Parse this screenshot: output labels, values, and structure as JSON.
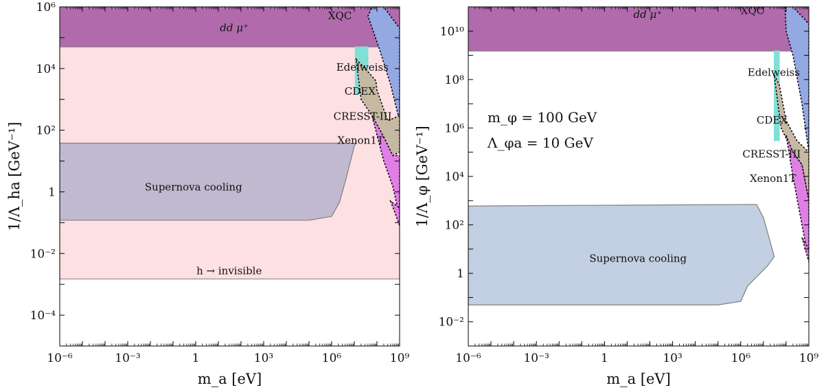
{
  "chart_data": [
    {
      "type": "area",
      "xlabel": "m_a [eV]",
      "ylabel": "1/Λ_ha [GeV⁻¹]",
      "xscale": "log",
      "yscale": "log",
      "xlim": [
        1e-06,
        1000000000.0
      ],
      "ylim": [
        1e-05,
        1000000.0
      ],
      "xticks": [
        {
          "value": 1e-06,
          "label": "10⁻⁶"
        },
        {
          "value": 0.001,
          "label": "10⁻³"
        },
        {
          "value": 1,
          "label": "1"
        },
        {
          "value": 1000.0,
          "label": "10³"
        },
        {
          "value": 1000000.0,
          "label": "10⁶"
        },
        {
          "value": 1000000000.0,
          "label": "10⁹"
        }
      ],
      "yticks": [
        {
          "value": 0.0001,
          "label": "10⁻⁴"
        },
        {
          "value": 0.01,
          "label": "10⁻²"
        },
        {
          "value": 1,
          "label": "1"
        },
        {
          "value": 100.0,
          "label": "10²"
        },
        {
          "value": 10000.0,
          "label": "10⁴"
        },
        {
          "value": 1000000.0,
          "label": "10⁶"
        }
      ],
      "regions": [
        {
          "name": "h → invisible",
          "color": "#fde0e2",
          "stroke": "#888888",
          "points": [
            [
              1e-06,
              0.0015
            ],
            [
              1000000000.0,
              0.0015
            ],
            [
              1000000000.0,
              50000.0
            ],
            [
              1e-06,
              50000.0
            ]
          ],
          "label_at": [
            30.0,
            0.0021
          ]
        },
        {
          "name": "Supernova cooling",
          "color": "#c1b9d0",
          "stroke": "#7f7f7f",
          "points": [
            [
              1e-06,
              0.12
            ],
            [
              100000.0,
              0.12
            ],
            [
              1000000.0,
              0.16
            ],
            [
              2200000.0,
              0.45
            ],
            [
              4500000.0,
              3
            ],
            [
              10000000.0,
              30
            ],
            [
              12000000.0,
              38
            ],
            [
              1e-06,
              38
            ]
          ],
          "label_at": [
            0.8,
            1.1
          ]
        },
        {
          "name": "dd μ⁺",
          "color": "#b16bac",
          "stroke": "#888888",
          "points": [
            [
              1e-06,
              50000.0
            ],
            [
              1000000000.0,
              50000.0
            ],
            [
              1000000000.0,
              1000000.0
            ],
            [
              1e-06,
              1000000.0
            ]
          ],
          "label_at": [
            50.0,
            160000.0
          ]
        },
        {
          "name": "Edelweiss",
          "color": "#80dfd6",
          "stroke": "#80dfd6",
          "points": [
            [
              11000000.0,
              50000.0
            ],
            [
              40000000.0,
              50000.0
            ],
            [
              40000000.0,
              1500.0
            ],
            [
              11000000.0,
              1500.0
            ]
          ],
          "label_at": [
            1600000.0,
            8500.0
          ]
        },
        {
          "name": "XQC",
          "color": "#94a8e2",
          "stroke": "#000000",
          "points": [
            [
              60000000.0,
              1000000.0
            ],
            [
              200000000.0,
              1000000.0
            ],
            [
              1000000000.0,
              200000.0
            ],
            [
              1000000000.0,
              200.0
            ],
            [
              400000000.0,
              3000.0
            ],
            [
              120000000.0,
              50000.0
            ],
            [
              40000000.0,
              500000.0
            ]
          ],
          "label_at": [
            700000.0,
            400000.0
          ]
        },
        {
          "name": "CDEX",
          "color": "#c6b9a3",
          "stroke": "#000000",
          "points": [
            [
              12000000.0,
              20000.0
            ],
            [
              30000000.0,
              10000.0
            ],
            [
              90000000.0,
              4000.0
            ],
            [
              100000000.0,
              2000.0
            ],
            [
              300000000.0,
              200.0
            ],
            [
              1000000000.0,
              300.0
            ],
            [
              1000000000.0,
              20.0
            ],
            [
              500000000.0,
              15
            ],
            [
              200000000.0,
              60
            ],
            [
              60000000.0,
              300.0
            ],
            [
              20000000.0,
              1000.0
            ]
          ],
          "label_at": [
            3700000.0,
            1400.0
          ]
        },
        {
          "name": "CRESST-III",
          "color": "#df7fe6",
          "stroke": "#000000",
          "points": [
            [
              60000000.0,
              300.0
            ],
            [
              200000000.0,
              60
            ],
            [
              500000000.0,
              15
            ],
            [
              1000000000.0,
              15
            ],
            [
              1000000000.0,
              0.15
            ],
            [
              500000000.0,
              1.5
            ],
            [
              200000000.0,
              10
            ]
          ],
          "label_at": [
            1200000.0,
            220.0
          ]
        },
        {
          "name": "Xenon1T",
          "color": "#df7fe6",
          "stroke": "#000000",
          "points": [
            [
              400000000.0,
              0.5
            ],
            [
              1000000000.0,
              0.08
            ],
            [
              1000000000.0,
              0.3
            ]
          ],
          "label_at": [
            1800000.0,
            36.0
          ]
        }
      ],
      "region_labels": {
        "dd": "dd μ⁺",
        "xqc": "XQC",
        "edelweiss": "Edelweiss",
        "cdex": "CDEX",
        "cresst": "CRESST-III",
        "xenon": "Xenon1T",
        "sn": "Supernova cooling",
        "hinv": "h → invisible"
      }
    },
    {
      "type": "area",
      "xlabel": "m_a [eV]",
      "ylabel": "1/Λ_φ [GeV⁻¹]",
      "xscale": "log",
      "yscale": "log",
      "xlim": [
        1e-06,
        1000000000.0
      ],
      "ylim": [
        0.001,
        100000000000.0
      ],
      "annotations": [
        "m_φ = 100 GeV",
        "Λ_φa = 10 GeV"
      ],
      "xticks": [
        {
          "value": 1e-06,
          "label": "10⁻⁶"
        },
        {
          "value": 0.001,
          "label": "10⁻³"
        },
        {
          "value": 1,
          "label": "1"
        },
        {
          "value": 1000.0,
          "label": "10³"
        },
        {
          "value": 1000000.0,
          "label": "10⁶"
        },
        {
          "value": 1000000000.0,
          "label": "10⁹"
        }
      ],
      "yticks": [
        {
          "value": 0.01,
          "label": "10⁻²"
        },
        {
          "value": 1,
          "label": "1"
        },
        {
          "value": 100.0,
          "label": "10²"
        },
        {
          "value": 10000.0,
          "label": "10⁴"
        },
        {
          "value": 1000000.0,
          "label": "10⁶"
        },
        {
          "value": 100000000.0,
          "label": "10⁸"
        },
        {
          "value": 10000000000.0,
          "label": "10¹⁰"
        }
      ],
      "regions": [
        {
          "name": "Supernova cooling",
          "color": "#c3cfe2",
          "stroke": "#7f7f7f",
          "points": [
            [
              1e-06,
              0.05
            ],
            [
              100000.0,
              0.05
            ],
            [
              1000000.0,
              0.07
            ],
            [
              2000000.0,
              0.3
            ],
            [
              15000000.0,
              2
            ],
            [
              30000000.0,
              5
            ],
            [
              10000000.0,
              200.0
            ],
            [
              5000000.0,
              700.0
            ],
            [
              1e-06,
              600.0
            ]
          ],
          "label_at": [
            30.0,
            3
          ]
        },
        {
          "name": "dd μ⁺",
          "color": "#b16bac",
          "stroke": "#888888",
          "points": [
            [
              1e-06,
              1500000000.0
            ],
            [
              1000000000.0,
              1500000000.0
            ],
            [
              1000000000.0,
              100000000000.0
            ],
            [
              1e-06,
              100000000000.0
            ]
          ],
          "label_at": [
            80.0,
            35000000000.0
          ]
        },
        {
          "name": "Edelweiss",
          "color": "#80dfd6",
          "stroke": "#80dfd6",
          "points": [
            [
              30000000.0,
              1500000000.0
            ],
            [
              50000000.0,
              1500000000.0
            ],
            [
              50000000.0,
              300000.0
            ],
            [
              30000000.0,
              300000.0
            ]
          ],
          "label_at": [
            2000000.0,
            140000000.0
          ]
        },
        {
          "name": "XQC",
          "color": "#94a8e2",
          "stroke": "#000000",
          "points": [
            [
              90000000.0,
              100000000000.0
            ],
            [
              200000000.0,
              100000000000.0
            ],
            [
              1000000000.0,
              20000000000.0
            ],
            [
              1000000000.0,
              100000.0
            ],
            [
              500000000.0,
              10000000.0
            ],
            [
              200000000.0,
              1000000000.0
            ],
            [
              100000000.0,
              10000000000.0
            ]
          ],
          "label_at": [
            1000000.0,
            50000000000.0
          ]
        },
        {
          "name": "CDEX",
          "color": "#c6b9a3",
          "stroke": "#000000",
          "points": [
            [
              30000000.0,
              150000000.0
            ],
            [
              50000000.0,
              60000000.0
            ],
            [
              100000000.0,
              2000000.0
            ],
            [
              300000000.0,
              300000.0
            ],
            [
              1000000000.0,
              100000.0
            ],
            [
              1000000000.0,
              1000.0
            ],
            [
              500000000.0,
              30000.0
            ],
            [
              200000000.0,
              100000.0
            ],
            [
              60000000.0,
              1000000.0
            ]
          ],
          "label_at": [
            5000000.0,
            1500000.0
          ]
        },
        {
          "name": "CRESST-III",
          "color": "#df7fe6",
          "stroke": "#000000",
          "points": [
            [
              100000000.0,
              500000.0
            ],
            [
              200000000.0,
              100000.0
            ],
            [
              500000000.0,
              30000.0
            ],
            [
              1000000000.0,
              1000.0
            ],
            [
              1000000000.0,
              3
            ],
            [
              500000000.0,
              100.0
            ],
            [
              200000000.0,
              10000.0
            ]
          ],
          "label_at": [
            1200000.0,
            60000.0
          ]
        },
        {
          "name": "Xenon1T",
          "color": "#df7fe6",
          "stroke": "#000000",
          "points": [
            [
              500000000.0,
              30
            ],
            [
              1000000000.0,
              3
            ],
            [
              1000000000.0,
              10
            ]
          ],
          "label_at": [
            2500000.0,
            6000.0
          ]
        }
      ],
      "region_labels": {
        "dd": "dd μ⁺",
        "xqc": "XQC",
        "edelweiss": "Edelweiss",
        "cdex": "CDEX",
        "cresst": "CRESST-III",
        "xenon": "Xenon1T",
        "sn": "Supernova cooling"
      }
    }
  ]
}
